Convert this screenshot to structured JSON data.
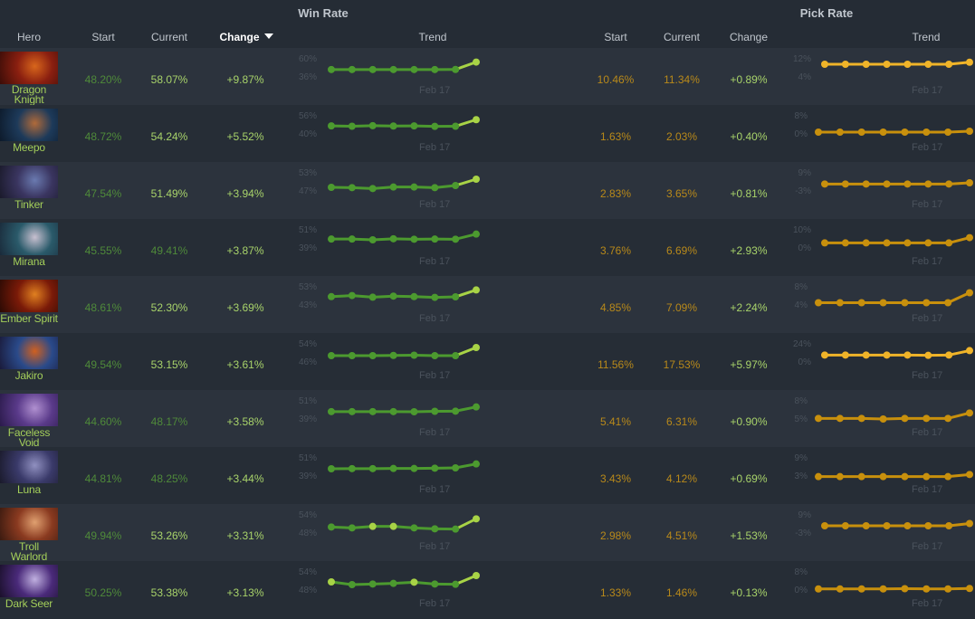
{
  "headers": {
    "win_rate": "Win Rate",
    "pick_rate": "Pick Rate",
    "hero": "Hero",
    "wr_start": "Start",
    "wr_current": "Current",
    "wr_change": "Change",
    "wr_trend": "Trend",
    "pr_start": "Start",
    "pr_current": "Current",
    "pr_change": "Change",
    "pr_trend": "Trend",
    "sorted_by": "Change (Win Rate), descending"
  },
  "colors": {
    "background": "#252c35",
    "row_alt": "#2c333d",
    "win_green": "#4c9a2f",
    "win_highlight": "#a8d346",
    "pick_gold": "#c8900d",
    "pick_highlight": "#f0b429",
    "hero_name": "#a4cf5a"
  },
  "date_label": "Feb 17",
  "rows": [
    {
      "hero": "Dragon Knight",
      "hero_lines": [
        "Dragon",
        "Knight"
      ],
      "portrait_colors": [
        "#8a1f10",
        "#d8661c",
        "#3b0d08"
      ],
      "wr_start": "48.20%",
      "wr_current": "58.07%",
      "wr_current_bright": true,
      "wr_change": "+9.87%",
      "wr_axis": [
        "60%",
        "36%"
      ],
      "wr_points": [
        48.2,
        48.2,
        48.2,
        48.2,
        48.2,
        48.2,
        48.3,
        58.07
      ],
      "wr_range": [
        36,
        60
      ],
      "wr_hl": [
        7
      ],
      "pr_start": "10.46%",
      "pr_current": "11.34%",
      "pr_change": "+0.89%",
      "pr_axis": [
        "12%",
        "4%"
      ],
      "pr_points": [
        10.4,
        10.4,
        10.4,
        10.4,
        10.4,
        10.4,
        10.4,
        11.3
      ],
      "pr_range": [
        4,
        12
      ],
      "pr_bright": true
    },
    {
      "hero": "Meepo",
      "hero_lines": [
        "Meepo"
      ],
      "portrait_colors": [
        "#1d3a5a",
        "#b06a3a",
        "#0d1a2a"
      ],
      "wr_start": "48.72%",
      "wr_current": "54.24%",
      "wr_current_bright": true,
      "wr_change": "+5.52%",
      "wr_axis": [
        "56%",
        "40%"
      ],
      "wr_points": [
        48.7,
        48.4,
        48.9,
        48.6,
        48.7,
        48.3,
        48.4,
        54.2
      ],
      "wr_range": [
        40,
        56
      ],
      "wr_hl": [
        7
      ],
      "pr_start": "1.63%",
      "pr_current": "2.03%",
      "pr_change": "+0.40%",
      "pr_axis": [
        "8%",
        "0%"
      ],
      "pr_points": [
        1.6,
        1.6,
        1.6,
        1.6,
        1.6,
        1.6,
        1.6,
        2.0
      ],
      "pr_range": [
        0,
        8
      ],
      "pr_bright": false
    },
    {
      "hero": "Tinker",
      "hero_lines": [
        "Tinker"
      ],
      "portrait_colors": [
        "#3a3560",
        "#6a7ab0",
        "#1a1a2a"
      ],
      "wr_start": "47.54%",
      "wr_current": "51.49%",
      "wr_current_bright": true,
      "wr_change": "+3.94%",
      "wr_axis": [
        "53%",
        "47%"
      ],
      "wr_points": [
        48.8,
        48.7,
        48.4,
        48.9,
        48.9,
        48.7,
        49.4,
        51.5
      ],
      "wr_range": [
        47,
        53
      ],
      "wr_hl": [
        7
      ],
      "pr_start": "2.83%",
      "pr_current": "3.65%",
      "pr_change": "+0.81%",
      "pr_axis": [
        "9%",
        "-3%"
      ],
      "pr_points": [
        2.8,
        2.8,
        2.8,
        2.8,
        2.8,
        2.8,
        2.8,
        3.6
      ],
      "pr_range": [
        -3,
        9
      ],
      "pr_bright": false
    },
    {
      "hero": "Mirana",
      "hero_lines": [
        "Mirana"
      ],
      "portrait_colors": [
        "#2a5a6a",
        "#c8c0d0",
        "#1a2a3a"
      ],
      "wr_start": "45.55%",
      "wr_current": "49.41%",
      "wr_current_bright": false,
      "wr_change": "+3.87%",
      "wr_axis": [
        "51%",
        "39%"
      ],
      "wr_points": [
        46.1,
        46.1,
        45.6,
        46.3,
        46.0,
        46.1,
        46.0,
        49.4
      ],
      "wr_range": [
        39,
        51
      ],
      "wr_hl": [],
      "pr_start": "3.76%",
      "pr_current": "6.69%",
      "pr_change": "+2.93%",
      "pr_axis": [
        "10%",
        "0%"
      ],
      "pr_points": [
        3.8,
        3.8,
        3.8,
        3.8,
        3.8,
        3.8,
        3.8,
        6.7
      ],
      "pr_range": [
        0,
        10
      ],
      "pr_bright": false
    },
    {
      "hero": "Ember Spirit",
      "hero_lines": [
        "Ember Spirit"
      ],
      "portrait_colors": [
        "#7a1a08",
        "#e08020",
        "#2a0a04"
      ],
      "wr_start": "48.61%",
      "wr_current": "52.30%",
      "wr_current_bright": true,
      "wr_change": "+3.69%",
      "wr_axis": [
        "53%",
        "43%"
      ],
      "wr_points": [
        48.6,
        49.2,
        48.3,
        48.9,
        48.6,
        48.2,
        48.5,
        52.3
      ],
      "wr_range": [
        43,
        53
      ],
      "wr_hl": [
        7
      ],
      "pr_start": "4.85%",
      "pr_current": "7.09%",
      "pr_change": "+2.24%",
      "pr_axis": [
        "8%",
        "4%"
      ],
      "pr_points": [
        4.9,
        4.9,
        4.9,
        4.9,
        4.9,
        4.9,
        4.9,
        7.1
      ],
      "pr_range": [
        4,
        8
      ],
      "pr_bright": false
    },
    {
      "hero": "Jakiro",
      "hero_lines": [
        "Jakiro"
      ],
      "portrait_colors": [
        "#2a4a8a",
        "#d06020",
        "#1a1a3a"
      ],
      "wr_start": "49.54%",
      "wr_current": "53.15%",
      "wr_current_bright": true,
      "wr_change": "+3.61%",
      "wr_axis": [
        "54%",
        "46%"
      ],
      "wr_points": [
        49.6,
        49.6,
        49.6,
        49.7,
        49.8,
        49.6,
        49.6,
        53.2
      ],
      "wr_range": [
        46,
        54
      ],
      "wr_hl": [
        7
      ],
      "pr_start": "11.56%",
      "pr_current": "17.53%",
      "pr_change": "+5.97%",
      "pr_axis": [
        "24%",
        "0%"
      ],
      "pr_points": [
        11.6,
        11.6,
        11.6,
        11.6,
        11.6,
        11.2,
        11.6,
        17.5
      ],
      "pr_range": [
        0,
        24
      ],
      "pr_bright": true
    },
    {
      "hero": "Faceless Void",
      "hero_lines": [
        "Faceless Void"
      ],
      "portrait_colors": [
        "#5a3a8a",
        "#b090d0",
        "#2a1a4a"
      ],
      "wr_start": "44.60%",
      "wr_current": "48.17%",
      "wr_current_bright": false,
      "wr_change": "+3.58%",
      "wr_axis": [
        "51%",
        "39%"
      ],
      "wr_points": [
        45.1,
        45.1,
        45.1,
        45.1,
        45.0,
        45.3,
        45.4,
        48.2
      ],
      "wr_range": [
        39,
        51
      ],
      "wr_hl": [],
      "pr_start": "5.41%",
      "pr_current": "6.31%",
      "pr_change": "+0.90%",
      "pr_axis": [
        "8%",
        "5%"
      ],
      "pr_points": [
        5.4,
        5.4,
        5.4,
        5.3,
        5.4,
        5.4,
        5.4,
        6.3
      ],
      "pr_range": [
        5,
        8
      ],
      "pr_bright": false
    },
    {
      "hero": "Luna",
      "hero_lines": [
        "Luna"
      ],
      "portrait_colors": [
        "#3a3a6a",
        "#9090c0",
        "#1a1a2a"
      ],
      "wr_start": "44.81%",
      "wr_current": "48.25%",
      "wr_current_bright": false,
      "wr_change": "+3.44%",
      "wr_axis": [
        "51%",
        "39%"
      ],
      "wr_points": [
        45.0,
        45.1,
        45.1,
        45.2,
        45.2,
        45.4,
        45.6,
        48.2
      ],
      "wr_range": [
        39,
        51
      ],
      "wr_hl": [],
      "pr_start": "3.43%",
      "pr_current": "4.12%",
      "pr_change": "+0.69%",
      "pr_axis": [
        "9%",
        "3%"
      ],
      "pr_points": [
        3.4,
        3.4,
        3.4,
        3.4,
        3.4,
        3.4,
        3.4,
        4.1
      ],
      "pr_range": [
        3,
        9
      ],
      "pr_bright": false
    },
    {
      "hero": "Troll Warlord",
      "hero_lines": [
        "Troll Warlord"
      ],
      "portrait_colors": [
        "#8a3a20",
        "#e0a070",
        "#3a1a10"
      ],
      "wr_start": "49.94%",
      "wr_current": "53.26%",
      "wr_current_bright": true,
      "wr_change": "+3.31%",
      "wr_axis": [
        "54%",
        "48%"
      ],
      "wr_points": [
        50.6,
        50.3,
        50.8,
        50.8,
        50.3,
        50.0,
        49.9,
        53.3
      ],
      "wr_range": [
        48,
        54
      ],
      "wr_hl": [
        2,
        3,
        7
      ],
      "pr_start": "2.98%",
      "pr_current": "4.51%",
      "pr_change": "+1.53%",
      "pr_axis": [
        "9%",
        "-3%"
      ],
      "pr_points": [
        3.0,
        3.0,
        3.0,
        3.0,
        3.0,
        3.0,
        3.0,
        4.5
      ],
      "pr_range": [
        -3,
        9
      ],
      "pr_bright": false
    },
    {
      "hero": "Dark Seer",
      "hero_lines": [
        "Dark Seer"
      ],
      "portrait_colors": [
        "#4a2a7a",
        "#c0b0e0",
        "#1a102a"
      ],
      "wr_start": "50.25%",
      "wr_current": "53.38%",
      "wr_current_bright": true,
      "wr_change": "+3.13%",
      "wr_axis": [
        "54%",
        "48%"
      ],
      "wr_points": [
        51.3,
        50.4,
        50.6,
        50.8,
        51.2,
        50.6,
        50.5,
        53.4
      ],
      "wr_range": [
        48,
        54
      ],
      "wr_hl": [
        0,
        4,
        7
      ],
      "pr_start": "1.33%",
      "pr_current": "1.46%",
      "pr_change": "+0.13%",
      "pr_axis": [
        "8%",
        "0%"
      ],
      "pr_points": [
        1.3,
        1.3,
        1.3,
        1.3,
        1.4,
        1.3,
        1.3,
        1.5
      ],
      "pr_range": [
        0,
        8
      ],
      "pr_bright": false
    }
  ]
}
